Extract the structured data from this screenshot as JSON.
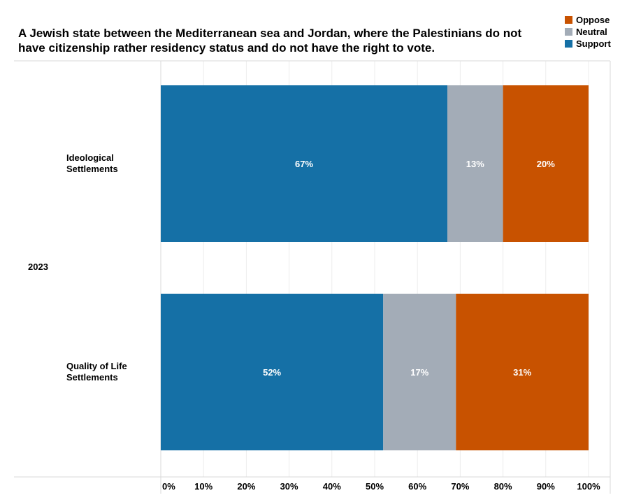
{
  "chart_data": {
    "type": "bar",
    "orientation": "horizontal",
    "stacked": true,
    "title": "A Jewish state between the Mediterranean sea and Jordan, where the Palestinians do not have citizenship rather residency status and do not have the right to vote.",
    "group_label": "2023",
    "categories": [
      [
        "Ideological",
        "Settlements"
      ],
      [
        "Quality of Life",
        "Settlements"
      ]
    ],
    "series": [
      {
        "name": "Support",
        "color": "#1570a6",
        "values": [
          67,
          52
        ],
        "labels": [
          "67%",
          "52%"
        ]
      },
      {
        "name": "Neutral",
        "color": "#a3acb7",
        "values": [
          13,
          17
        ],
        "labels": [
          "13%",
          "17%"
        ]
      },
      {
        "name": "Oppose",
        "color": "#c85200",
        "values": [
          20,
          31
        ],
        "labels": [
          "20%",
          "31%"
        ]
      }
    ],
    "legend_order": [
      "Oppose",
      "Neutral",
      "Support"
    ],
    "legend_position": "top-right",
    "xlim": [
      0,
      100
    ],
    "xticks": [
      "0%",
      "10%",
      "20%",
      "30%",
      "40%",
      "50%",
      "60%",
      "70%",
      "80%",
      "90%",
      "100%"
    ],
    "grid": true
  }
}
